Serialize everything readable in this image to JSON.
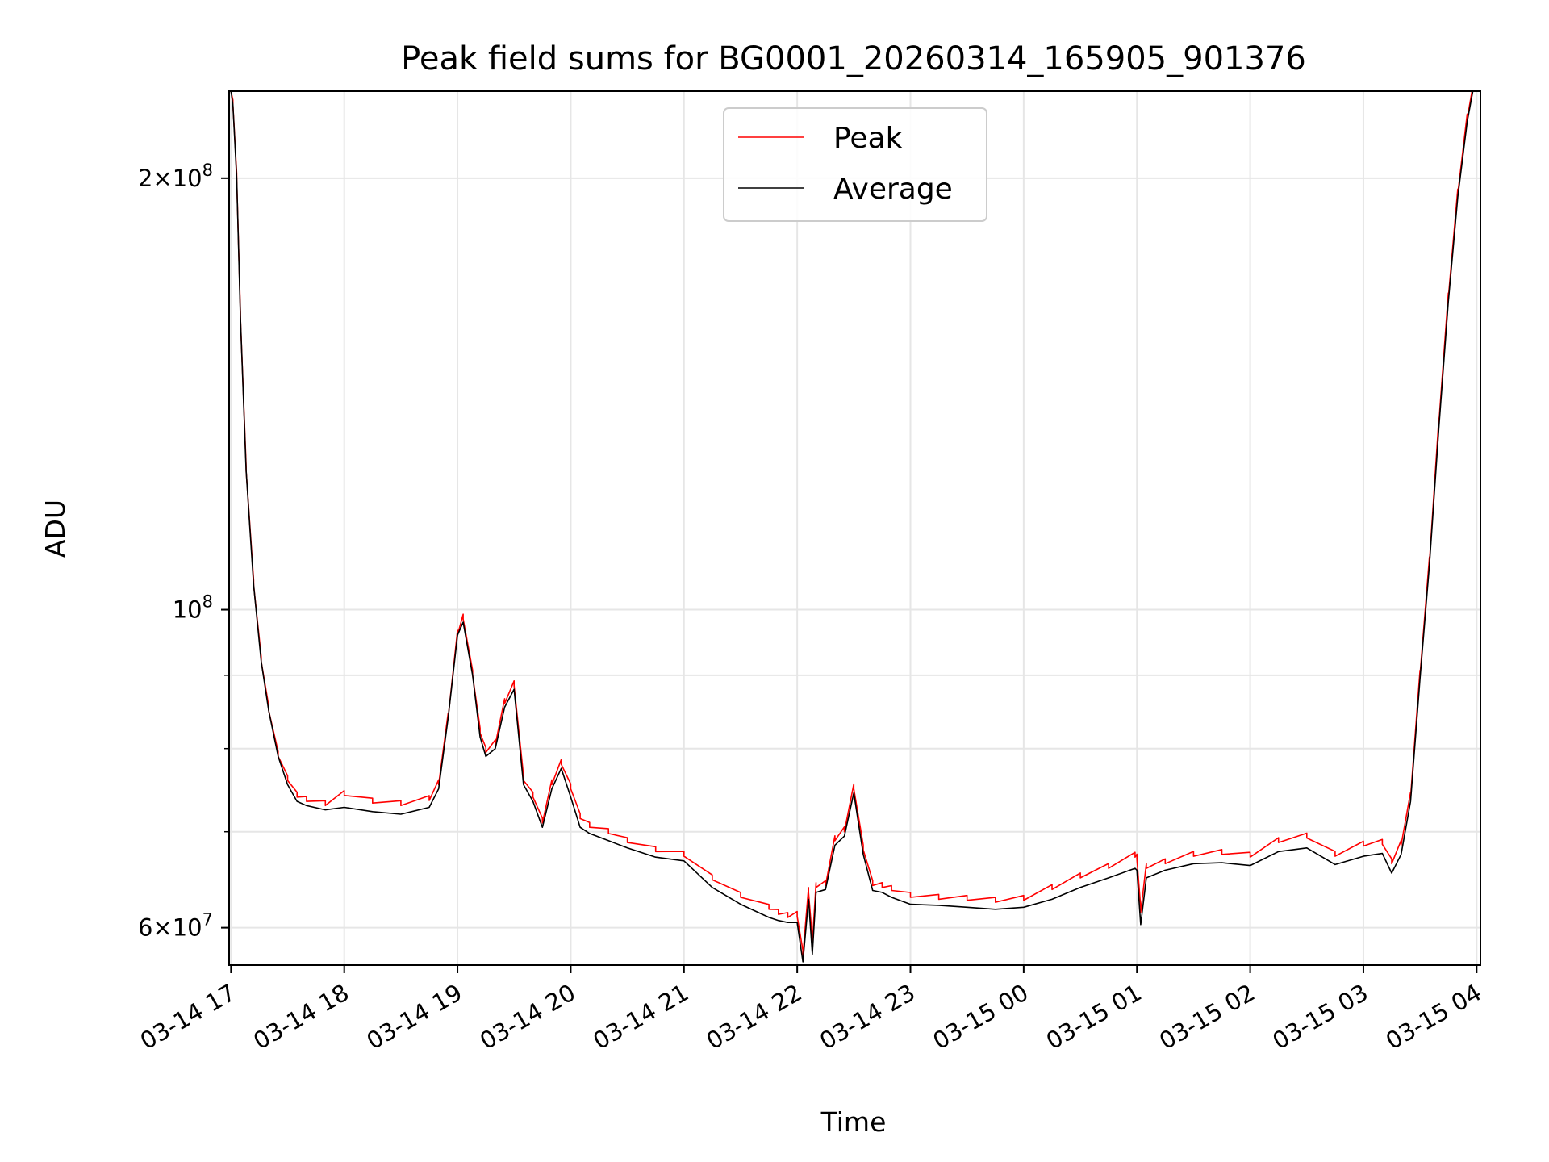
{
  "chart_data": {
    "type": "line",
    "title": "Peak field sums for BG0001_20260314_165905_901376",
    "xlabel": "Time",
    "ylabel": "ADU",
    "yscale": "log",
    "ylim": [
      56500000,
      230000000
    ],
    "xlim": [
      "2026-03-14 16:59",
      "2026-03-15 04:02"
    ],
    "grid": true,
    "legend_position": "top-center",
    "x_tick_labels": [
      "03-14 17",
      "03-14 18",
      "03-14 19",
      "03-14 20",
      "03-14 21",
      "03-14 22",
      "03-14 23",
      "03-15 00",
      "03-15 01",
      "03-15 02",
      "03-15 03",
      "03-15 04"
    ],
    "y_tick_labels": [
      {
        "value": 60000000,
        "base": "6×10",
        "exp": "7"
      },
      {
        "value": 100000000,
        "base": "10",
        "exp": "8"
      },
      {
        "value": 200000000,
        "base": "2×10",
        "exp": "8"
      }
    ],
    "x": [
      "2026-03-14 16:59",
      "2026-03-14 17:00",
      "2026-03-14 17:01",
      "2026-03-14 17:03",
      "2026-03-14 17:05",
      "2026-03-14 17:08",
      "2026-03-14 17:12",
      "2026-03-14 17:16",
      "2026-03-14 17:20",
      "2026-03-14 17:25",
      "2026-03-14 17:30",
      "2026-03-14 17:35",
      "2026-03-14 17:40",
      "2026-03-14 17:50",
      "2026-03-14 18:00",
      "2026-03-14 18:15",
      "2026-03-14 18:30",
      "2026-03-14 18:45",
      "2026-03-14 18:50",
      "2026-03-14 18:55",
      "2026-03-14 19:00",
      "2026-03-14 19:03",
      "2026-03-14 19:08",
      "2026-03-14 19:12",
      "2026-03-14 19:15",
      "2026-03-14 19:20",
      "2026-03-14 19:25",
      "2026-03-14 19:30",
      "2026-03-14 19:35",
      "2026-03-14 19:40",
      "2026-03-14 19:45",
      "2026-03-14 19:50",
      "2026-03-14 19:55",
      "2026-03-14 20:00",
      "2026-03-14 20:05",
      "2026-03-14 20:10",
      "2026-03-14 20:20",
      "2026-03-14 20:30",
      "2026-03-14 20:45",
      "2026-03-14 21:00",
      "2026-03-14 21:15",
      "2026-03-14 21:30",
      "2026-03-14 21:45",
      "2026-03-14 21:50",
      "2026-03-14 21:55",
      "2026-03-14 22:00",
      "2026-03-14 22:03",
      "2026-03-14 22:06",
      "2026-03-14 22:08",
      "2026-03-14 22:10",
      "2026-03-14 22:15",
      "2026-03-14 22:20",
      "2026-03-14 22:25",
      "2026-03-14 22:30",
      "2026-03-14 22:35",
      "2026-03-14 22:40",
      "2026-03-14 22:45",
      "2026-03-14 22:50",
      "2026-03-14 23:00",
      "2026-03-14 23:15",
      "2026-03-14 23:30",
      "2026-03-14 23:45",
      "2026-03-15 00:00",
      "2026-03-15 00:15",
      "2026-03-15 00:30",
      "2026-03-15 00:45",
      "2026-03-15 00:59",
      "2026-03-15 01:00",
      "2026-03-15 01:02",
      "2026-03-15 01:05",
      "2026-03-15 01:15",
      "2026-03-15 01:30",
      "2026-03-15 01:45",
      "2026-03-15 02:00",
      "2026-03-15 02:15",
      "2026-03-15 02:30",
      "2026-03-15 02:45",
      "2026-03-15 03:00",
      "2026-03-15 03:10",
      "2026-03-15 03:15",
      "2026-03-15 03:20",
      "2026-03-15 03:25",
      "2026-03-15 03:30",
      "2026-03-15 03:35",
      "2026-03-15 03:40",
      "2026-03-15 03:45",
      "2026-03-15 03:50",
      "2026-03-15 03:55",
      "2026-03-15 03:58",
      "2026-03-15 04:00",
      "2026-03-15 04:02"
    ],
    "series": [
      {
        "name": "Peak",
        "color": "#ff0000",
        "values": [
          230000000,
          230000000,
          225000000,
          200000000,
          160000000,
          125000000,
          104000000,
          92000000,
          85000000,
          79000000,
          76000000,
          74000000,
          73500000,
          73000000,
          74200000,
          73300000,
          73000000,
          73600000,
          75500000,
          84000000,
          96000000,
          98500000,
          90000000,
          82000000,
          79500000,
          80500000,
          86000000,
          88500000,
          76000000,
          74000000,
          71000000,
          75500000,
          78000000,
          75000000,
          71500000,
          70500000,
          69800000,
          68800000,
          67800000,
          67300000,
          64800000,
          63000000,
          61800000,
          61300000,
          61000000,
          61100000,
          57400000,
          63500000,
          58500000,
          64000000,
          64200000,
          69000000,
          70000000,
          75000000,
          68000000,
          64200000,
          64000000,
          63700000,
          63000000,
          62800000,
          62700000,
          62500000,
          62700000,
          63800000,
          65000000,
          66000000,
          67200000,
          67000000,
          61500000,
          66000000,
          66500000,
          67300000,
          67500000,
          67200000,
          68800000,
          69300000,
          67300000,
          68400000,
          68600000,
          66500000,
          68500000,
          74000000,
          90000000,
          108000000,
          135000000,
          165000000,
          195000000,
          220000000,
          230000000,
          230000000,
          230000000
        ]
      },
      {
        "name": "Average",
        "color": "#000000",
        "values": [
          230000000,
          230000000,
          225000000,
          200000000,
          160000000,
          125000000,
          104000000,
          92000000,
          85000000,
          79000000,
          75500000,
          73500000,
          73000000,
          72500000,
          72800000,
          72300000,
          72000000,
          72800000,
          75000000,
          84000000,
          96000000,
          98000000,
          90000000,
          81500000,
          79000000,
          80000000,
          85500000,
          88000000,
          75500000,
          73500000,
          70500000,
          75000000,
          77500000,
          74000000,
          70500000,
          69800000,
          69000000,
          68200000,
          67200000,
          66800000,
          64000000,
          62300000,
          61000000,
          60700000,
          60500000,
          60500000,
          56800000,
          62800000,
          57500000,
          63500000,
          63800000,
          68500000,
          69500000,
          74500000,
          67500000,
          63700000,
          63500000,
          63000000,
          62300000,
          62200000,
          62000000,
          61800000,
          62000000,
          62800000,
          64000000,
          65000000,
          66000000,
          65800000,
          60300000,
          65000000,
          65800000,
          66500000,
          66600000,
          66300000,
          67800000,
          68200000,
          66400000,
          67300000,
          67600000,
          65500000,
          67500000,
          73500000,
          89500000,
          107500000,
          134000000,
          164000000,
          194000000,
          219000000,
          230000000,
          230000000,
          230000000
        ]
      }
    ]
  }
}
